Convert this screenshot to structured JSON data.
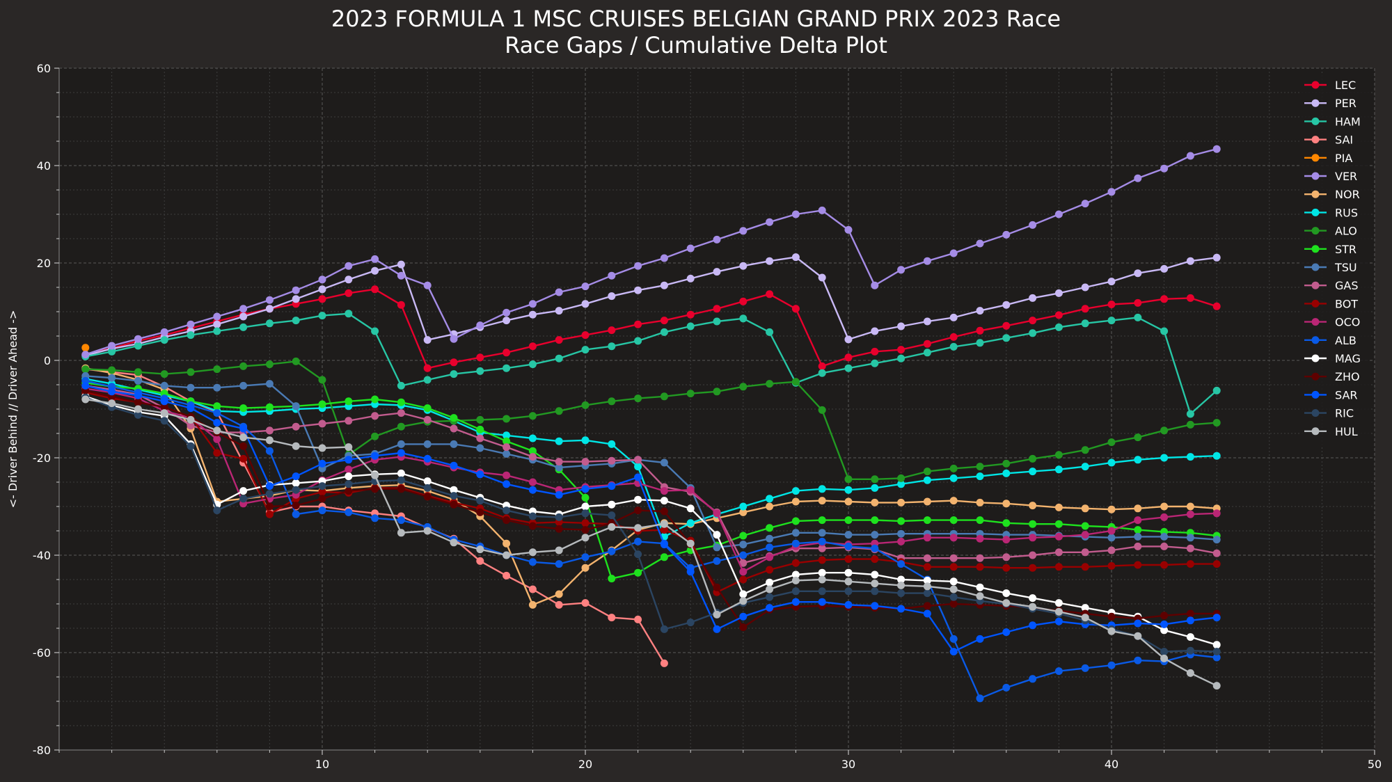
{
  "chart_data": {
    "type": "line",
    "title": "2023 FORMULA 1 MSC CRUISES BELGIAN GRAND PRIX 2023 Race",
    "subtitle": "Race Gaps / Cumulative Delta Plot",
    "xlabel": "",
    "ylabel": "<- Driver Behind // Driver Ahead ->",
    "xlim": [
      0,
      50
    ],
    "ylim": [
      -80,
      60
    ],
    "x_ticks": [
      10,
      20,
      30,
      40,
      50
    ],
    "y_ticks": [
      -80,
      -60,
      -40,
      -20,
      0,
      20,
      40,
      60
    ],
    "grid": true,
    "legend": "top-right",
    "series": [
      {
        "name": "LEC",
        "color": "#e8002d",
        "x_start": 1,
        "values": [
          1.2,
          2.5,
          4,
          5.2,
          6.6,
          8,
          9.4,
          10.6,
          11.6,
          12.6,
          13.8,
          14.6,
          11.4,
          -1.6,
          -0.4,
          0.6,
          1.6,
          2.9,
          4.2,
          5.2,
          6.2,
          7.4,
          8.2,
          9.4,
          10.6,
          12.1,
          13.6,
          10.6,
          -1.2,
          0.6,
          1.8,
          2.2,
          3.4,
          4.8,
          6.1,
          7.1,
          8.2,
          9.3,
          10.6,
          11.5,
          11.8,
          12.6,
          12.8,
          11.1
        ]
      },
      {
        "name": "PER",
        "color": "#c9b9f5",
        "x_start": 1,
        "values": [
          1,
          2.4,
          3.4,
          4.8,
          6,
          7.4,
          9,
          10.6,
          12.6,
          14.6,
          16.6,
          18.4,
          19.7,
          4.2,
          5.4,
          6.8,
          8.2,
          9.4,
          10.2,
          11.6,
          13.2,
          14.4,
          15.4,
          16.8,
          18.2,
          19.4,
          20.4,
          21.2,
          17,
          4.3,
          6,
          7,
          8,
          8.8,
          10.2,
          11.4,
          12.8,
          13.8,
          15,
          16.2,
          17.9,
          18.8,
          20.4,
          21.1
        ]
      },
      {
        "name": "HAM",
        "color": "#27c6a5",
        "x_start": 1,
        "values": [
          0.8,
          1.8,
          3,
          4.2,
          5.2,
          6,
          6.8,
          7.6,
          8.2,
          9.2,
          9.6,
          6,
          -5.2,
          -4,
          -2.8,
          -2.2,
          -1.6,
          -0.8,
          0.4,
          2.2,
          2.9,
          4,
          5.8,
          7,
          8,
          8.6,
          5.8,
          -4.6,
          -2.6,
          -1.6,
          -0.6,
          0.4,
          1.6,
          2.8,
          3.6,
          4.6,
          5.6,
          6.8,
          7.6,
          8.2,
          8.8,
          6,
          -11,
          -6.2
        ]
      },
      {
        "name": "SAI",
        "color": "#ff8181",
        "x_start": 1,
        "values": [
          -1.8,
          -2.4,
          -3,
          -5.4,
          -8.4,
          -10.6,
          -21,
          -31.2,
          -30,
          -30,
          -30.8,
          -31.4,
          -32,
          -34.4,
          -36.6,
          -41.2,
          -44.2,
          -47,
          -50.2,
          -49.8,
          -52.8,
          -53.2,
          -62.2
        ]
      },
      {
        "name": "PIA",
        "color": "#ff8700",
        "x_start": 1,
        "values": [
          2.6
        ]
      },
      {
        "name": "VER",
        "color": "#a58ce6",
        "x_start": 1,
        "values": [
          1.2,
          3,
          4.4,
          5.8,
          7.4,
          9,
          10.6,
          12.4,
          14.4,
          16.6,
          19.4,
          20.8,
          17.4,
          15.4,
          4.4,
          7.2,
          9.8,
          11.6,
          14,
          15.2,
          17.4,
          19.4,
          21,
          23,
          24.8,
          26.6,
          28.4,
          30,
          30.8,
          26.8,
          15.4,
          18.6,
          20.4,
          22,
          24,
          25.8,
          27.8,
          30,
          32.2,
          34.6,
          37.4,
          39.4,
          42,
          43.4
        ]
      },
      {
        "name": "NOR",
        "color": "#f3b36e",
        "x_start": 1,
        "values": [
          -1.6,
          -2.6,
          -4,
          -6,
          -14,
          -29,
          -28.4,
          -27.8,
          -26.6,
          -26.8,
          -26.2,
          -25.8,
          -25.6,
          -26.8,
          -28.6,
          -32,
          -37.6,
          -50.2,
          -48,
          -42.6,
          -39,
          -34.8,
          -33.4,
          -33.6,
          -32.4,
          -31.2,
          -30,
          -29,
          -28.8,
          -29,
          -29.2,
          -29.2,
          -29,
          -28.8,
          -29.2,
          -29.4,
          -29.8,
          -30.2,
          -30.4,
          -30.6,
          -30.4,
          -30,
          -30,
          -30.4
        ]
      },
      {
        "name": "RUS",
        "color": "#00e6e6",
        "x_start": 1,
        "values": [
          -3.8,
          -4.8,
          -6,
          -7.2,
          -8.4,
          -10.4,
          -10.6,
          -10.4,
          -10,
          -9.8,
          -9.4,
          -9,
          -9.2,
          -10.2,
          -12.4,
          -14.8,
          -15.4,
          -16,
          -16.6,
          -16.4,
          -17.2,
          -21.8,
          -36.2,
          -33.4,
          -31.6,
          -30,
          -28.4,
          -26.8,
          -26.4,
          -26.6,
          -26.2,
          -25.4,
          -24.6,
          -24.2,
          -23.8,
          -23.2,
          -22.8,
          -22.4,
          -21.8,
          -21,
          -20.4,
          -20,
          -19.8,
          -19.6
        ]
      },
      {
        "name": "ALO",
        "color": "#229922",
        "x_start": 1,
        "values": [
          -1.8,
          -2,
          -2.4,
          -2.8,
          -2.4,
          -1.8,
          -1.2,
          -0.8,
          -0.2,
          -4,
          -19.4,
          -15.6,
          -13.6,
          -12.6,
          -12.4,
          -12.2,
          -12,
          -11.4,
          -10.4,
          -9.2,
          -8.4,
          -7.8,
          -7.4,
          -6.8,
          -6.4,
          -5.4,
          -4.8,
          -4.4,
          -10.2,
          -24.4,
          -24.4,
          -24.2,
          -22.8,
          -22.2,
          -21.8,
          -21.2,
          -20.2,
          -19.4,
          -18.4,
          -16.8,
          -15.8,
          -14.4,
          -13.2,
          -12.8
        ]
      },
      {
        "name": "STR",
        "color": "#1ee11e",
        "x_start": 1,
        "values": [
          -4.6,
          -5.4,
          -5.8,
          -6.8,
          -8.4,
          -9.4,
          -9.8,
          -9.6,
          -9.4,
          -9,
          -8.4,
          -8,
          -8.6,
          -9.8,
          -11.8,
          -14.2,
          -16.6,
          -18.6,
          -22.4,
          -28.2,
          -44.8,
          -43.6,
          -40.4,
          -39,
          -38,
          -36,
          -34.4,
          -33,
          -32.8,
          -32.8,
          -32.8,
          -33,
          -32.8,
          -32.8,
          -32.8,
          -33.4,
          -33.6,
          -33.6,
          -34,
          -34.2,
          -34.8,
          -35.2,
          -35.4,
          -36
        ]
      },
      {
        "name": "TSU",
        "color": "#4a7ab4",
        "x_start": 1,
        "values": [
          -3.2,
          -3.6,
          -4.2,
          -5.2,
          -5.6,
          -5.6,
          -5.2,
          -4.8,
          -9.4,
          -22.2,
          -19.6,
          -19.2,
          -17.2,
          -17.2,
          -17.2,
          -18,
          -19.2,
          -20.4,
          -22,
          -21.6,
          -21.2,
          -20.4,
          -21,
          -26.2,
          -38.4,
          -37.8,
          -36.6,
          -35.4,
          -35.4,
          -35.8,
          -35.8,
          -35.6,
          -35.6,
          -35.6,
          -35.6,
          -35.8,
          -35.8,
          -36,
          -36.2,
          -36.4,
          -36.2,
          -36.2,
          -36.4,
          -36.8
        ]
      },
      {
        "name": "GAS",
        "color": "#c25c8e",
        "x_start": 1,
        "values": [
          -5.2,
          -6,
          -7,
          -9.8,
          -13.4,
          -14.8,
          -14.8,
          -14.4,
          -13.6,
          -13,
          -12.4,
          -11.4,
          -10.8,
          -12.2,
          -14,
          -16,
          -17.8,
          -19.8,
          -20.8,
          -20.8,
          -20.6,
          -20.4,
          -26,
          -27,
          -31.2,
          -41.6,
          -40.2,
          -38.6,
          -38.6,
          -38.4,
          -38.8,
          -40.6,
          -40.6,
          -40.6,
          -40.6,
          -40.4,
          -40,
          -39.4,
          -39.4,
          -39,
          -38.2,
          -38.2,
          -38.6,
          -39.6
        ]
      },
      {
        "name": "BOT",
        "color": "#990000",
        "x_start": 1,
        "values": [
          -6.6,
          -7.8,
          -8.6,
          -9.6,
          -11.6,
          -19,
          -20.2,
          -31.6,
          -28.4,
          -27,
          -27.2,
          -26.2,
          -26.2,
          -27.8,
          -29.2,
          -30.4,
          -32.4,
          -33.4,
          -33.2,
          -33.4,
          -33.6,
          -35,
          -34.8,
          -37,
          -47.6,
          -45,
          -43,
          -41.6,
          -41,
          -40.8,
          -40.8,
          -41.4,
          -42.4,
          -42.4,
          -42.4,
          -42.6,
          -42.6,
          -42.4,
          -42.4,
          -42.2,
          -42,
          -42,
          -41.8,
          -41.8
        ]
      },
      {
        "name": "OCO",
        "color": "#ba2675",
        "x_start": 1,
        "values": [
          -5.8,
          -6.6,
          -7.8,
          -10.4,
          -11.8,
          -16.2,
          -29.4,
          -28.4,
          -27.6,
          -24.6,
          -22.4,
          -20.4,
          -19.8,
          -20.8,
          -22,
          -23,
          -23.6,
          -25,
          -26.6,
          -26,
          -25.6,
          -25.2,
          -26.8,
          -26.6,
          -31.4,
          -43.4,
          -40.4,
          -38.2,
          -37.4,
          -37.8,
          -37.6,
          -37.2,
          -36.4,
          -36.4,
          -36.6,
          -36.8,
          -36.4,
          -36.2,
          -35.8,
          -35,
          -32.8,
          -32.2,
          -31.6,
          -31.4
        ]
      },
      {
        "name": "ALB",
        "color": "#0a5ae6",
        "x_start": 1,
        "values": [
          -4.2,
          -5.4,
          -6.6,
          -7.8,
          -9.2,
          -10.8,
          -13.6,
          -18.6,
          -31.6,
          -30.8,
          -31.2,
          -32.4,
          -32.8,
          -34.2,
          -36.8,
          -38.2,
          -40,
          -41.4,
          -41.8,
          -40.4,
          -39.2,
          -37.2,
          -37.6,
          -42.6,
          -41.2,
          -40,
          -38.4,
          -37.6,
          -37.2,
          -38.2,
          -38.6,
          -41.8,
          -45,
          -57.2,
          -69.4,
          -67.2,
          -65.4,
          -63.8,
          -63.2,
          -62.6,
          -61.6,
          -61.8,
          -60.4,
          -61
        ]
      },
      {
        "name": "MAG",
        "color": "#ffffff",
        "x_start": 1,
        "values": [
          -7.4,
          -9.2,
          -10.6,
          -11.4,
          -17.2,
          -29.6,
          -26.8,
          -25.6,
          -25.2,
          -24.8,
          -23.8,
          -23.4,
          -23.2,
          -24.8,
          -26.6,
          -28.2,
          -29.8,
          -31,
          -31.6,
          -30,
          -29.6,
          -28.6,
          -28.8,
          -30.4,
          -35.8,
          -48,
          -45.6,
          -44,
          -43.6,
          -43.6,
          -44,
          -45,
          -45.2,
          -45.4,
          -46.6,
          -47.8,
          -48.8,
          -49.8,
          -50.8,
          -51.8,
          -52.6,
          -55.4,
          -56.8,
          -58.4
        ]
      },
      {
        "name": "ZHO",
        "color": "#5e0000",
        "x_start": 1,
        "values": [
          -6.2,
          -7.4,
          -8.6,
          -9.6,
          -11.6,
          -14.8,
          -17.6,
          -30,
          -29.8,
          -28.4,
          -26.8,
          -26.4,
          -26.4,
          -28,
          -29.6,
          -31.2,
          -32.8,
          -34,
          -34.6,
          -34.8,
          -33.4,
          -30.8,
          -31,
          -37.8,
          -46.6,
          -54.8,
          -51.2,
          -50.6,
          -50.4,
          -50.6,
          -50.8,
          -51,
          -50.4,
          -50,
          -50.2,
          -50.4,
          -50.8,
          -51.4,
          -52,
          -52.6,
          -53,
          -52.4,
          -52,
          -52
        ]
      },
      {
        "name": "SAR",
        "color": "#0055ff",
        "x_start": 1,
        "values": [
          -5.2,
          -6.4,
          -7.2,
          -8.4,
          -9.8,
          -12.8,
          -14,
          -25.8,
          -23.8,
          -21.2,
          -20.4,
          -19.6,
          -19,
          -20.2,
          -21.6,
          -23.4,
          -25.4,
          -26.6,
          -27.6,
          -26.4,
          -25.8,
          -24,
          -37.8,
          -43.4,
          -55.2,
          -52.6,
          -50.8,
          -49.6,
          -49.6,
          -50.2,
          -50.4,
          -51,
          -52,
          -59.8,
          -57.2,
          -55.8,
          -54.4,
          -53.6,
          -54.2,
          -54.4,
          -54,
          -54.2,
          -53.4,
          -52.8
        ]
      },
      {
        "name": "RIC",
        "color": "#2b4562",
        "x_start": 1,
        "values": [
          -7.6,
          -9.6,
          -11.2,
          -12.4,
          -17.6,
          -30.8,
          -28.4,
          -27.4,
          -26.6,
          -25.8,
          -25.4,
          -24.8,
          -24.6,
          -26.2,
          -27.8,
          -28.8,
          -30.8,
          -32,
          -32.2,
          -31.4,
          -31.8,
          -39.8,
          -55.2,
          -53.8,
          -51.8,
          -49.8,
          -48.6,
          -47.4,
          -47.4,
          -47.4,
          -47.4,
          -47.8,
          -47.8,
          -48.6,
          -49.4,
          -50,
          -51,
          -52,
          -53.4,
          -55.2,
          -56.6,
          -59.8,
          -59.6,
          -59.8
        ]
      },
      {
        "name": "HUL",
        "color": "#b6babd",
        "x_start": 1,
        "values": [
          -8,
          -8.8,
          -10,
          -10.8,
          -12.2,
          -14.4,
          -15.8,
          -16.4,
          -17.6,
          -18,
          -17.8,
          -23.6,
          -35.4,
          -35,
          -37.4,
          -38.8,
          -40,
          -39.4,
          -39,
          -36.4,
          -34.2,
          -34.4,
          -33.6,
          -37.6,
          -52.2,
          -49.4,
          -47,
          -45.2,
          -45,
          -45.4,
          -45.8,
          -46.2,
          -46.4,
          -47,
          -48.4,
          -49.8,
          -50.6,
          -51.6,
          -52.8,
          -55.6,
          -56.6,
          -61.2,
          -64.2,
          -66.8
        ]
      }
    ]
  }
}
